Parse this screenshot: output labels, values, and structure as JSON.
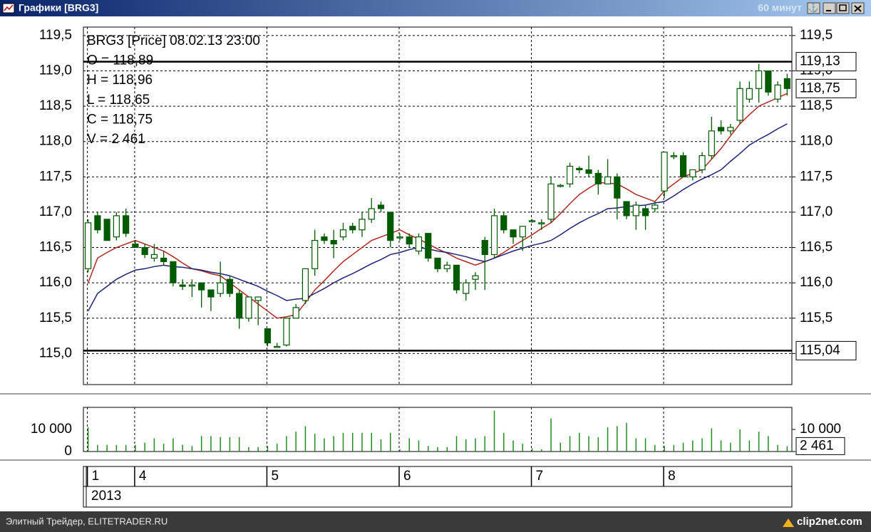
{
  "window": {
    "title": "Графики [BRG3]",
    "interval": "60 минут"
  },
  "footer": {
    "left": "Элитный Трейдер, ELITETRADER.RU",
    "right": "clip2net.com"
  },
  "info": [
    "BRG3 [Price] 08.02.13 23:00",
    "O = 118,89",
    "H = 118,96",
    "L = 118,65",
    "C = 118,75",
    "V = 2 461"
  ],
  "year": "2013",
  "chart_data": [
    {
      "type": "candlestick",
      "categories": [
        "1",
        null,
        null,
        null,
        null,
        "4",
        null,
        null,
        null,
        null,
        null,
        null,
        null,
        null,
        null,
        null,
        null,
        null,
        null,
        "5",
        null,
        null,
        null,
        null,
        null,
        null,
        null,
        null,
        null,
        null,
        null,
        null,
        null,
        "6",
        null,
        null,
        null,
        null,
        null,
        null,
        null,
        null,
        null,
        null,
        null,
        null,
        null,
        "7",
        null,
        null,
        null,
        null,
        null,
        null,
        null,
        null,
        null,
        null,
        null,
        null,
        null,
        "8",
        null,
        null,
        null,
        null,
        null,
        null,
        null,
        null,
        null,
        null,
        null,
        null,
        null
      ],
      "open": [
        116.2,
        116.95,
        116.9,
        116.65,
        116.95,
        116.55,
        116.5,
        116.35,
        116.35,
        116.3,
        115.97,
        115.97,
        116.0,
        115.9,
        115.85,
        116.05,
        115.85,
        115.5,
        115.75,
        115.35,
        115.1,
        115.12,
        115.5,
        115.75,
        116.2,
        116.65,
        116.6,
        116.65,
        116.8,
        116.75,
        116.9,
        117.1,
        117.0,
        116.65,
        116.65,
        116.45,
        116.7,
        116.35,
        116.2,
        116.25,
        115.85,
        116.05,
        116.6,
        116.4,
        116.95,
        116.75,
        116.65,
        116.88,
        116.85,
        116.9,
        117.38,
        117.4,
        117.62,
        117.6,
        117.55,
        117.4,
        117.5,
        117.15,
        116.95,
        117.05,
        117.05,
        117.3,
        117.8,
        117.8,
        117.5,
        117.6,
        117.8,
        118.2,
        118.15,
        118.3,
        118.6,
        118.75,
        119.0,
        118.6,
        118.89
      ],
      "high": [
        116.9,
        117.0,
        116.9,
        117.0,
        117.05,
        116.6,
        116.55,
        116.55,
        116.45,
        116.3,
        116.05,
        116.05,
        116.0,
        115.9,
        116.3,
        116.1,
        115.9,
        115.8,
        115.8,
        115.35,
        115.15,
        115.5,
        115.7,
        116.2,
        116.75,
        116.7,
        116.75,
        116.85,
        116.85,
        117.0,
        117.2,
        117.15,
        117.0,
        116.7,
        116.7,
        116.7,
        116.7,
        116.35,
        116.3,
        116.25,
        116.05,
        116.15,
        116.65,
        117.05,
        117.0,
        116.75,
        116.8,
        116.9,
        116.9,
        117.5,
        117.4,
        117.7,
        117.65,
        117.8,
        117.6,
        117.75,
        117.55,
        117.15,
        117.15,
        117.1,
        117.15,
        117.85,
        117.85,
        117.85,
        117.6,
        117.85,
        118.35,
        118.3,
        118.25,
        118.85,
        118.85,
        119.1,
        119.0,
        118.85,
        118.96
      ],
      "low": [
        116.15,
        116.7,
        116.6,
        116.6,
        116.65,
        116.5,
        116.35,
        116.3,
        116.25,
        115.95,
        115.9,
        115.8,
        115.65,
        115.6,
        115.8,
        115.8,
        115.35,
        115.45,
        115.4,
        115.1,
        115.1,
        115.1,
        115.5,
        115.7,
        116.1,
        116.55,
        116.35,
        116.6,
        116.7,
        116.65,
        116.85,
        117.0,
        116.5,
        116.6,
        116.5,
        116.4,
        116.3,
        116.15,
        116.15,
        115.85,
        115.75,
        115.9,
        115.9,
        116.35,
        116.7,
        116.55,
        116.45,
        116.85,
        116.75,
        116.85,
        117.35,
        117.35,
        117.55,
        117.5,
        117.25,
        117.4,
        116.9,
        116.9,
        116.75,
        116.75,
        117.0,
        117.2,
        117.75,
        117.5,
        117.45,
        117.55,
        117.75,
        118.1,
        118.1,
        118.25,
        118.55,
        118.55,
        118.65,
        118.55,
        118.65
      ],
      "close": [
        116.85,
        116.75,
        116.6,
        116.95,
        116.7,
        116.5,
        116.4,
        116.4,
        116.3,
        116.0,
        115.95,
        115.97,
        115.9,
        115.8,
        116.0,
        115.85,
        115.5,
        115.8,
        115.8,
        115.15,
        115.1,
        115.5,
        115.65,
        116.2,
        116.6,
        116.6,
        116.55,
        116.75,
        116.75,
        116.9,
        117.05,
        117.05,
        116.6,
        116.65,
        116.55,
        116.65,
        116.35,
        116.2,
        116.25,
        115.9,
        116.0,
        116.1,
        116.4,
        116.95,
        116.75,
        116.65,
        116.8,
        116.88,
        116.85,
        117.4,
        117.38,
        117.65,
        117.6,
        117.55,
        117.4,
        117.5,
        117.2,
        116.95,
        117.1,
        116.95,
        117.1,
        117.85,
        117.8,
        117.5,
        117.6,
        117.8,
        118.15,
        118.15,
        118.2,
        118.75,
        118.75,
        119.0,
        118.7,
        118.8,
        118.75
      ],
      "up_color": "#ffffff",
      "down_color": "#005a00",
      "edge_color": "#005a00",
      "series": [
        {
          "color": "#b0281e",
          "values": [
            116.0,
            116.35,
            116.43,
            116.5,
            116.55,
            116.6,
            116.55,
            116.5,
            116.45,
            116.37,
            116.28,
            116.2,
            116.17,
            116.13,
            116.1,
            116.0,
            115.9,
            115.8,
            115.7,
            115.6,
            115.5,
            115.52,
            115.55,
            115.72,
            115.9,
            116.03,
            116.17,
            116.3,
            116.4,
            116.5,
            116.6,
            116.65,
            116.7,
            116.75,
            116.68,
            116.62,
            116.55,
            116.48,
            116.42,
            116.35,
            116.3,
            116.25,
            116.3,
            116.35,
            116.43,
            116.52,
            116.6,
            116.68,
            116.77,
            116.85,
            116.98,
            117.12,
            117.25,
            117.34,
            117.42,
            117.41,
            117.4,
            117.33,
            117.25,
            117.2,
            117.15,
            117.3,
            117.4,
            117.5,
            117.55,
            117.6,
            117.75,
            117.9,
            118.08,
            118.25,
            118.38,
            118.5,
            118.56,
            118.62,
            118.68
          ]
        },
        {
          "color": "#1c2478",
          "values": [
            115.6,
            115.85,
            115.95,
            116.05,
            116.12,
            116.18,
            116.2,
            116.23,
            116.25,
            116.23,
            116.22,
            116.2,
            116.18,
            116.15,
            116.13,
            116.1,
            116.05,
            116.0,
            115.95,
            115.88,
            115.82,
            115.75,
            115.77,
            115.78,
            115.85,
            115.92,
            116.0,
            116.07,
            116.13,
            116.2,
            116.27,
            116.33,
            116.4,
            116.43,
            116.47,
            116.5,
            116.48,
            116.45,
            116.43,
            116.4,
            116.37,
            116.33,
            116.3,
            116.35,
            116.4,
            116.45,
            116.49,
            116.53,
            116.56,
            116.6,
            116.68,
            116.77,
            116.85,
            116.92,
            116.98,
            117.05,
            117.06,
            117.08,
            117.09,
            117.1,
            117.13,
            117.15,
            117.23,
            117.32,
            117.4,
            117.47,
            117.53,
            117.6,
            117.72,
            117.83,
            117.95,
            118.03,
            118.1,
            118.18,
            118.25
          ]
        }
      ],
      "hlines": [
        {
          "value": 119.13,
          "label": "119,13"
        },
        {
          "value": 115.04,
          "label": "115,04"
        }
      ],
      "last": {
        "value": 118.75,
        "label": "118,75"
      },
      "ylim": [
        114.56,
        119.62
      ],
      "yticks": [
        {
          "value": 115.0,
          "label": "115,0"
        },
        {
          "value": 115.5,
          "label": "115,5"
        },
        {
          "value": 116.0,
          "label": "116,0"
        },
        {
          "value": 116.5,
          "label": "116,5"
        },
        {
          "value": 117.0,
          "label": "117,0"
        },
        {
          "value": 117.5,
          "label": "117,5"
        },
        {
          "value": 118.0,
          "label": "118,0"
        },
        {
          "value": 118.5,
          "label": "118,5"
        },
        {
          "value": 119.0,
          "label": "119,0"
        },
        {
          "value": 119.5,
          "label": "119,5"
        }
      ],
      "grid": true
    },
    {
      "type": "bar",
      "color": "#1e8c1e",
      "values": [
        11000,
        3000,
        3000,
        3000,
        3000,
        3000,
        4000,
        6000,
        3500,
        6000,
        3000,
        2500,
        7000,
        7000,
        6500,
        6500,
        6500,
        2000,
        2000,
        2500,
        3500,
        7000,
        9000,
        11500,
        8000,
        6000,
        7000,
        8500,
        8500,
        8500,
        8500,
        5500,
        8500,
        1000,
        6000,
        5000,
        2500,
        2000,
        2000,
        7000,
        5500,
        6000,
        7000,
        18500,
        8500,
        5000,
        3500,
        1500,
        1000,
        15000,
        4000,
        7000,
        8500,
        7000,
        6500,
        11000,
        11500,
        13000,
        6000,
        6000,
        3000,
        2500,
        3000,
        4000,
        5000,
        6000,
        10500,
        5000,
        4000,
        10000,
        5000,
        9000,
        7000,
        3000,
        2461
      ],
      "last": {
        "value": 2461,
        "label": "2 461"
      },
      "ylim": [
        0,
        20000
      ],
      "yticks": [
        0,
        {
          "value": 10000,
          "label": "10 000"
        }
      ],
      "grid": false
    }
  ]
}
